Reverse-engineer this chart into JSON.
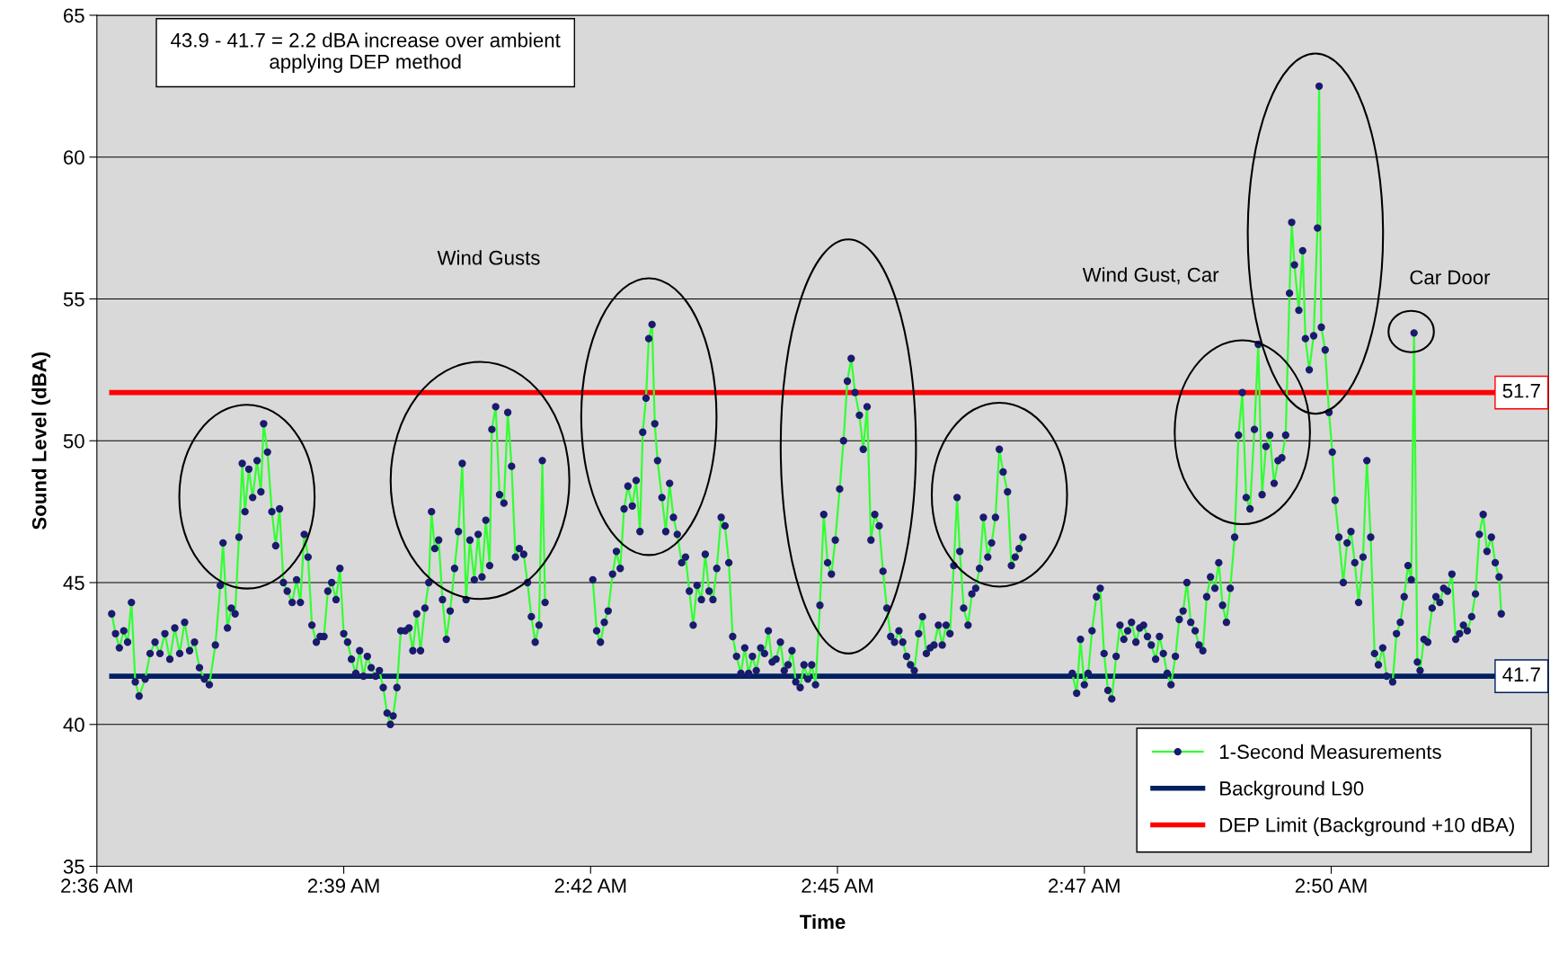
{
  "chart_data": {
    "type": "line",
    "xlabel": "Time",
    "ylabel": "Sound Level (dBA)",
    "xlim": [
      2.6075,
      2.8721
    ],
    "xticks": [
      {
        "value": 2.6075,
        "label": "2:36 AM"
      },
      {
        "value": 2.6525,
        "label": "2:39 AM"
      },
      {
        "value": 2.6975,
        "label": "2:42 AM"
      },
      {
        "value": 2.7425,
        "label": "2:45 AM"
      },
      {
        "value": 2.7875,
        "label": "2:47 AM"
      },
      {
        "value": 2.8325,
        "label": "2:50 AM"
      }
    ],
    "ylim": [
      35,
      65
    ],
    "yticks": [
      35,
      40,
      45,
      50,
      55,
      60,
      65
    ],
    "grid": "y",
    "legend": "bottom right",
    "series": [
      {
        "name": "1-Second Measurements",
        "color": "#33ff33",
        "marker": "circle",
        "x": [
          2.6102,
          2.6109,
          2.6116,
          2.6124,
          2.6131,
          2.6138,
          2.6145,
          2.6152,
          2.6163,
          2.6172,
          2.6181,
          2.619,
          2.6199,
          2.6208,
          2.6217,
          2.6226,
          2.6235,
          2.6244,
          2.6253,
          2.6262,
          2.6271,
          2.628,
          2.6291,
          2.63,
          2.6305,
          2.6313,
          2.632,
          2.6327,
          2.6334,
          2.634,
          2.6345,
          2.6352,
          2.6359,
          2.6367,
          2.6374,
          2.6379,
          2.6386,
          2.6394,
          2.6401,
          2.6408,
          2.6415,
          2.6422,
          2.6431,
          2.6439,
          2.6446,
          2.6453,
          2.646,
          2.6467,
          2.6475,
          2.6482,
          2.6489,
          2.6496,
          2.6503,
          2.6511,
          2.6518,
          2.6525,
          2.6532,
          2.6539,
          2.6547,
          2.6554,
          2.6561,
          2.6568,
          2.6575,
          2.6583,
          2.659,
          2.6597,
          2.6604,
          2.661,
          2.6615,
          2.6622,
          2.6629,
          2.6637,
          2.6644,
          2.6651,
          2.6658,
          2.6665,
          2.6673,
          2.668,
          2.6685,
          2.6691,
          2.6698,
          2.6705,
          2.6712,
          2.6719,
          2.6727,
          2.6734,
          2.6741,
          2.6748,
          2.6755,
          2.6763,
          2.677,
          2.6777,
          2.6784,
          2.6791,
          2.6795,
          2.6802,
          2.6809,
          2.6817,
          2.6824,
          2.6831,
          2.6838,
          2.6845,
          2.6853,
          2.686,
          2.6867,
          2.6874,
          2.6881,
          2.6887,
          2.6892,
          2.693,
          2.6979,
          2.6986,
          2.6993,
          2.7,
          2.7007,
          2.7015,
          2.7022,
          2.7029,
          2.7036,
          2.7043,
          2.7051,
          2.7058,
          2.7065,
          2.707,
          2.7076,
          2.7081,
          2.7087,
          2.7092,
          2.7097,
          2.7105,
          2.7112,
          2.7119,
          2.7126,
          2.7133,
          2.7141,
          2.7148,
          2.7155,
          2.7162,
          2.7169,
          2.7177,
          2.7184,
          2.7191,
          2.7198,
          2.7205,
          2.7213,
          2.722,
          2.7227,
          2.7234,
          2.7241,
          2.7249,
          2.7256,
          2.7263,
          2.727,
          2.7277,
          2.7285,
          2.7292,
          2.7299,
          2.7306,
          2.7313,
          2.7321,
          2.7328,
          2.7335,
          2.7342,
          2.7349,
          2.7357,
          2.7364,
          2.7371,
          2.7378,
          2.7385,
          2.7393,
          2.74,
          2.7407,
          2.7414,
          2.7421,
          2.7429,
          2.7436,
          2.7443,
          2.745,
          2.7457,
          2.7465,
          2.7472,
          2.7479,
          2.7486,
          2.7493,
          2.7501,
          2.7508,
          2.7515,
          2.7522,
          2.7529,
          2.7537,
          2.7544,
          2.7551,
          2.7558,
          2.7565,
          2.7573,
          2.758,
          2.7587,
          2.7594,
          2.7601,
          2.7609,
          2.7616,
          2.7623,
          2.763,
          2.7637,
          2.7643,
          2.7648,
          2.7655,
          2.7663,
          2.767,
          2.7677,
          2.7684,
          2.7691,
          2.7699,
          2.7706,
          2.7713,
          2.772,
          2.7727,
          2.7735,
          2.7742,
          2.7749,
          2.7756,
          2.7763,
          2.7808,
          2.7853,
          2.7861,
          2.7868,
          2.7875,
          2.7882,
          2.7889,
          2.7897,
          2.7904,
          2.7911,
          2.7918,
          2.7925,
          2.7933,
          2.794,
          2.7947,
          2.7954,
          2.7961,
          2.7969,
          2.7976,
          2.7983,
          2.799,
          2.7997,
          2.8005,
          2.8012,
          2.8019,
          2.8026,
          2.8033,
          2.8041,
          2.8048,
          2.8055,
          2.8062,
          2.8069,
          2.8077,
          2.8084,
          2.8091,
          2.8098,
          2.8105,
          2.8113,
          2.812,
          2.8127,
          2.8134,
          2.8141,
          2.8149,
          2.8156,
          2.8163,
          2.817,
          2.8177,
          2.8185,
          2.8192,
          2.8199,
          2.8206,
          2.8213,
          2.8221,
          2.8228,
          2.8235,
          2.8242,
          2.8249,
          2.8253,
          2.8258,
          2.8266,
          2.8273,
          2.8278,
          2.8285,
          2.8293,
          2.83,
          2.8303,
          2.8307,
          2.8314,
          2.8321,
          2.8327,
          2.8332,
          2.8339,
          2.8347,
          2.8354,
          2.8361,
          2.8368,
          2.8375,
          2.8383,
          2.839,
          2.8397,
          2.8404,
          2.8411,
          2.8419,
          2.8426,
          2.8437,
          2.8444,
          2.8451,
          2.8458,
          2.8465,
          2.8471,
          2.8476,
          2.8482,
          2.8487,
          2.8494,
          2.8501,
          2.8509,
          2.8516,
          2.8523,
          2.853,
          2.8537,
          2.8545,
          2.8552,
          2.8559,
          2.8566,
          2.8573,
          2.8581,
          2.8588,
          2.8595,
          2.8602,
          2.8609,
          2.8617,
          2.8624,
          2.8631,
          2.8635
        ],
        "values": [
          43.9,
          43.2,
          42.7,
          43.3,
          42.9,
          44.3,
          41.5,
          41.0,
          41.6,
          42.5,
          42.9,
          42.5,
          43.2,
          42.3,
          43.4,
          42.5,
          43.6,
          42.6,
          42.9,
          42.0,
          41.6,
          41.4,
          42.8,
          44.9,
          46.4,
          43.4,
          44.1,
          43.9,
          46.6,
          49.2,
          47.5,
          49.0,
          48.0,
          49.3,
          48.2,
          50.6,
          49.6,
          47.5,
          46.3,
          47.6,
          45.0,
          44.7,
          44.3,
          45.1,
          44.3,
          46.7,
          45.9,
          43.5,
          42.9,
          43.1,
          43.1,
          44.7,
          45.0,
          44.4,
          45.5,
          43.2,
          42.9,
          42.3,
          41.8,
          42.6,
          41.7,
          42.4,
          42.0,
          41.7,
          41.9,
          41.3,
          40.4,
          40.0,
          40.3,
          41.3,
          43.3,
          43.3,
          43.4,
          42.6,
          43.9,
          42.6,
          44.1,
          45.0,
          47.5,
          46.2,
          46.5,
          44.4,
          43.0,
          44.0,
          45.5,
          46.8,
          49.2,
          44.4,
          46.5,
          45.1,
          46.7,
          45.2,
          47.2,
          45.6,
          50.4,
          51.2,
          48.1,
          47.8,
          51.0,
          49.1,
          45.9,
          46.2,
          46.0,
          45.0,
          43.8,
          42.9,
          43.5,
          49.3,
          44.3,
          null,
          45.1,
          43.3,
          42.9,
          43.6,
          44.0,
          45.3,
          46.1,
          45.5,
          47.6,
          48.4,
          47.7,
          48.6,
          46.8,
          50.3,
          51.5,
          53.6,
          54.1,
          50.6,
          49.3,
          48.0,
          46.8,
          48.5,
          47.3,
          46.7,
          45.7,
          45.9,
          44.7,
          43.5,
          44.9,
          44.4,
          46.0,
          44.7,
          44.4,
          45.5,
          47.3,
          47.0,
          45.7,
          43.1,
          42.4,
          41.8,
          42.7,
          41.8,
          42.4,
          41.9,
          42.7,
          42.5,
          43.3,
          42.2,
          42.3,
          42.9,
          41.9,
          42.1,
          42.6,
          41.5,
          41.3,
          42.1,
          41.6,
          42.1,
          41.4,
          44.2,
          47.4,
          45.7,
          45.3,
          46.5,
          48.3,
          50.0,
          52.1,
          52.9,
          51.7,
          50.9,
          49.7,
          51.2,
          46.5,
          47.4,
          47.0,
          45.4,
          44.1,
          43.1,
          42.9,
          43.3,
          42.9,
          42.4,
          42.1,
          41.9,
          43.2,
          43.8,
          42.5,
          42.7,
          42.8,
          43.5,
          42.8,
          43.5,
          43.2,
          45.6,
          48.0,
          46.1,
          44.1,
          43.5,
          44.6,
          44.8,
          45.5,
          47.3,
          45.9,
          46.4,
          47.3,
          49.7,
          48.9,
          48.2,
          45.6,
          45.9,
          46.2,
          46.6,
          null,
          41.8,
          41.1,
          43.0,
          41.4,
          41.8,
          43.3,
          44.5,
          44.8,
          42.5,
          41.2,
          40.9,
          42.4,
          43.5,
          43.0,
          43.3,
          43.6,
          42.9,
          43.4,
          43.5,
          43.1,
          42.8,
          42.3,
          43.1,
          42.5,
          41.8,
          41.4,
          42.4,
          43.7,
          44.0,
          45.0,
          43.6,
          43.3,
          42.8,
          42.6,
          44.5,
          45.2,
          44.8,
          45.7,
          44.2,
          43.6,
          44.8,
          46.6,
          50.2,
          51.7,
          48.0,
          47.6,
          50.4,
          53.4,
          48.1,
          49.8,
          50.2,
          48.5,
          49.3,
          49.4,
          50.2,
          55.2,
          57.7,
          56.2,
          54.6,
          56.7,
          53.6,
          52.5,
          53.7,
          57.5,
          62.5,
          54.0,
          53.2,
          51.0,
          49.6,
          47.9,
          46.6,
          45.0,
          46.4,
          46.8,
          45.7,
          44.3,
          45.9,
          49.3,
          46.6,
          42.5,
          42.1,
          42.7,
          41.7,
          41.5,
          43.2,
          43.6,
          44.5,
          45.6,
          45.1,
          53.8,
          42.2,
          41.9,
          43.0,
          42.9,
          44.1,
          44.5,
          44.3,
          44.8,
          44.7,
          45.3,
          43.0,
          43.2,
          43.5,
          43.3,
          43.8,
          44.6,
          46.7,
          47.4,
          46.1,
          46.6,
          45.7,
          45.2,
          43.9
        ]
      },
      {
        "name": "Background L90",
        "color": "#002060",
        "x": [
          2.6102,
          2.8721
        ],
        "values": [
          41.7,
          41.7
        ],
        "value_labels": [
          null,
          "41.7"
        ]
      },
      {
        "name": "DEP Limit (Background +10 dBA)",
        "color": "#ff0000",
        "x": [
          2.6102,
          2.8721
        ],
        "values": [
          51.7,
          51.7
        ],
        "value_labels": [
          null,
          "51.7"
        ]
      }
    ],
    "annotations": [
      "43.9 - 41.7 = 2.2 dBA increase over ambient\napplying DEP method",
      "Wind Gusts",
      "Wind Gust, Car",
      "Car Door"
    ]
  }
}
